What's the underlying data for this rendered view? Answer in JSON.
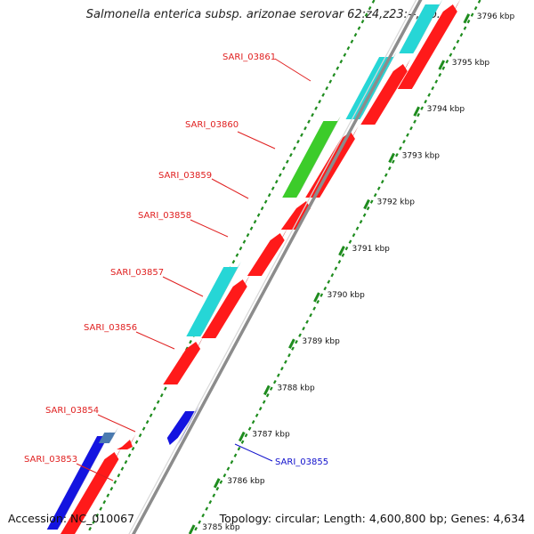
{
  "title": "Salmonella enterica subsp. arizonae serovar 62:z4,z23:--, co...",
  "footer": {
    "accession": "Accession: NC_010067",
    "summary": "Topology: circular; Length: 4,600,800 bp; Genes: 4,634"
  },
  "colors": {
    "cds": "#ff1a1a",
    "cds_minus": "#1414e0",
    "rna": "#26d6d6",
    "green": "#3ccc2a",
    "steelblue": "#4a7ab0",
    "backbone": "#8c8c8c",
    "tick": "#1e8c1e",
    "label_red": "#e02020",
    "label_blue": "#1010cc"
  },
  "ticks": [
    "3785 kbp",
    "3786 kbp",
    "3787 kbp",
    "3788 kbp",
    "3789 kbp",
    "3790 kbp",
    "3791 kbp",
    "3792 kbp",
    "3793 kbp",
    "3794 kbp",
    "3795 kbp",
    "3796 kbp"
  ],
  "gene_labels": [
    {
      "text": "SARI_03861",
      "strand": "plus"
    },
    {
      "text": "SARI_03860",
      "strand": "plus"
    },
    {
      "text": "SARI_03859",
      "strand": "plus"
    },
    {
      "text": "SARI_03858",
      "strand": "plus"
    },
    {
      "text": "SARI_03857",
      "strand": "plus"
    },
    {
      "text": "SARI_03856",
      "strand": "plus"
    },
    {
      "text": "SARI_03854",
      "strand": "plus"
    },
    {
      "text": "SARI_03853",
      "strand": "plus"
    },
    {
      "text": "SARI_03855",
      "strand": "minus"
    }
  ]
}
